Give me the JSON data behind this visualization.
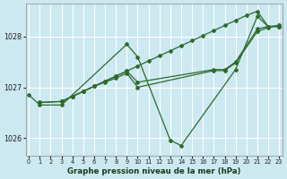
{
  "title": "Graphe pression niveau de la mer (hPa)",
  "bg_color": "#cce8f0",
  "grid_color": "#ffffff",
  "line_color": "#2d6a2d",
  "ylim": [
    1025.65,
    1028.65
  ],
  "xlim": [
    -0.3,
    23.3
  ],
  "yticks": [
    1026,
    1027,
    1028
  ],
  "xticks": [
    0,
    1,
    2,
    3,
    4,
    5,
    6,
    7,
    8,
    9,
    10,
    11,
    12,
    13,
    14,
    15,
    16,
    17,
    18,
    19,
    20,
    21,
    22,
    23
  ],
  "series1_x": [
    0,
    1,
    3,
    9,
    10,
    13,
    14,
    19,
    21,
    22,
    23
  ],
  "series1_y": [
    1026.85,
    1026.65,
    1026.65,
    1027.85,
    1027.6,
    1025.95,
    1025.85,
    1027.35,
    1028.4,
    1028.2,
    1028.2
  ],
  "series2_x": [
    1,
    3,
    4,
    5,
    6,
    7,
    8,
    9,
    10,
    11,
    12,
    13,
    14,
    15,
    16,
    17,
    18,
    19,
    20,
    21,
    22,
    23
  ],
  "series2_y": [
    1026.7,
    1026.72,
    1026.82,
    1026.92,
    1027.02,
    1027.12,
    1027.22,
    1027.32,
    1027.42,
    1027.52,
    1027.62,
    1027.72,
    1027.82,
    1027.92,
    1028.02,
    1028.12,
    1028.22,
    1028.32,
    1028.42,
    1028.5,
    1028.2,
    1028.2
  ],
  "series3_x": [
    1,
    3,
    4,
    5,
    6,
    7,
    8,
    9,
    10,
    17,
    18,
    19,
    21,
    22,
    23
  ],
  "series3_y": [
    1026.7,
    1026.72,
    1026.82,
    1026.92,
    1027.02,
    1027.12,
    1027.22,
    1027.32,
    1027.1,
    1027.35,
    1027.35,
    1027.5,
    1028.15,
    1028.2,
    1028.22
  ],
  "series4_x": [
    3,
    4,
    5,
    6,
    7,
    8,
    9,
    10,
    17,
    18,
    19,
    21,
    22,
    23
  ],
  "series4_y": [
    1026.72,
    1026.82,
    1026.92,
    1027.02,
    1027.1,
    1027.18,
    1027.28,
    1027.0,
    1027.33,
    1027.33,
    1027.48,
    1028.1,
    1028.18,
    1028.22
  ]
}
